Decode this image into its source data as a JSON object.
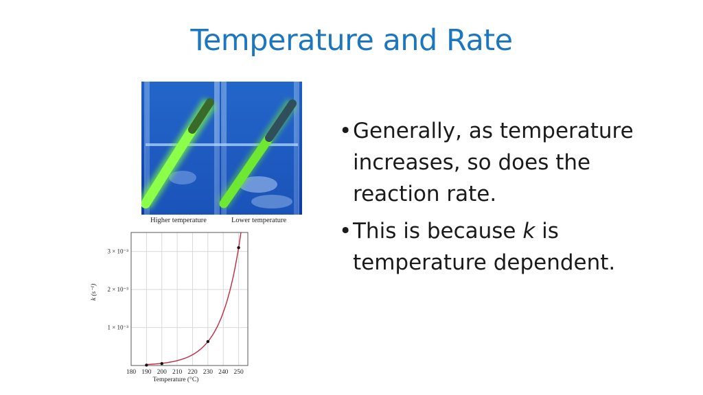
{
  "slide": {
    "title": "Temperature and Rate",
    "bullets": [
      {
        "before": "Generally, as temperature increases, so does the reaction rate.",
        "italic": "",
        "after": ""
      },
      {
        "before": "This is because ",
        "italic": "k",
        "after": " is temperature dependent."
      }
    ],
    "bullet_glyph": "•",
    "accent_color": "#1d77bf"
  },
  "photo": {
    "captions": [
      "Higher temperature",
      "Lower temperature"
    ],
    "left_stick_color": "#7fff3f",
    "right_stick_color": "#6ee832"
  },
  "chart_data": {
    "type": "line",
    "xlabel": "Temperature (°C)",
    "ylabel": "k (s⁻¹)",
    "x_ticks": [
      180,
      190,
      200,
      210,
      220,
      230,
      240,
      250
    ],
    "y_ticks": [
      0.001,
      0.002,
      0.003
    ],
    "y_tick_labels": [
      "1 × 10⁻³",
      "2 × 10⁻³",
      "3 × 10⁻³"
    ],
    "xlim": [
      180,
      256
    ],
    "ylim": [
      0,
      0.0035
    ],
    "grid": true,
    "series": [
      {
        "x": [
          190,
          200,
          230,
          250
        ],
        "y": [
          1e-05,
          5e-05,
          0.00063,
          0.0031
        ],
        "color": "#c0283c"
      }
    ]
  }
}
